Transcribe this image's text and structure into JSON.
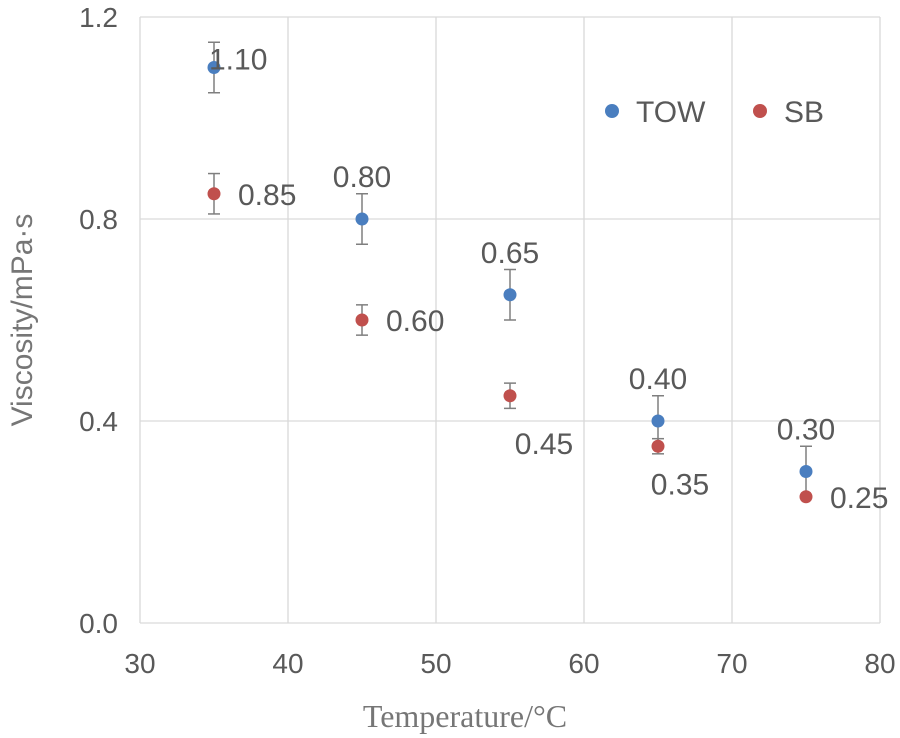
{
  "chart_data": {
    "type": "scatter",
    "title": "",
    "xlabel": "Temperature/°C",
    "ylabel": "Viscosity/mPa·s",
    "xlim": [
      30,
      80
    ],
    "ylim": [
      0.0,
      1.2
    ],
    "xticks": [
      30,
      40,
      50,
      60,
      70,
      80
    ],
    "xtick_labels": [
      "30",
      "40",
      "50",
      "60",
      "70",
      "80"
    ],
    "yticks": [
      0.0,
      0.4,
      0.8,
      1.2
    ],
    "ytick_labels": [
      "0.0",
      "0.4",
      "0.8",
      "1.2"
    ],
    "grid": true,
    "legend_position": "top-right",
    "series": [
      {
        "name": "TOW",
        "color": "#4a7ebf",
        "x": [
          35,
          45,
          55,
          65,
          75
        ],
        "y": [
          1.1,
          0.8,
          0.65,
          0.4,
          0.3
        ],
        "error": [
          0.05,
          0.05,
          0.05,
          0.05,
          0.05
        ],
        "labels": [
          "1.10",
          "0.80",
          "0.65",
          "0.40",
          "0.30"
        ],
        "label_positions": [
          "right",
          "above",
          "above",
          "above",
          "above"
        ]
      },
      {
        "name": "SB",
        "color": "#c0504d",
        "x": [
          35,
          45,
          55,
          65,
          75
        ],
        "y": [
          0.85,
          0.6,
          0.45,
          0.35,
          0.25
        ],
        "error": [
          0.04,
          0.03,
          0.025,
          0.015,
          0.0
        ],
        "labels": [
          "0.85",
          "0.60",
          "0.45",
          "0.35",
          "0.25"
        ],
        "label_positions": [
          "right",
          "right",
          "below",
          "below",
          "right"
        ]
      }
    ]
  }
}
